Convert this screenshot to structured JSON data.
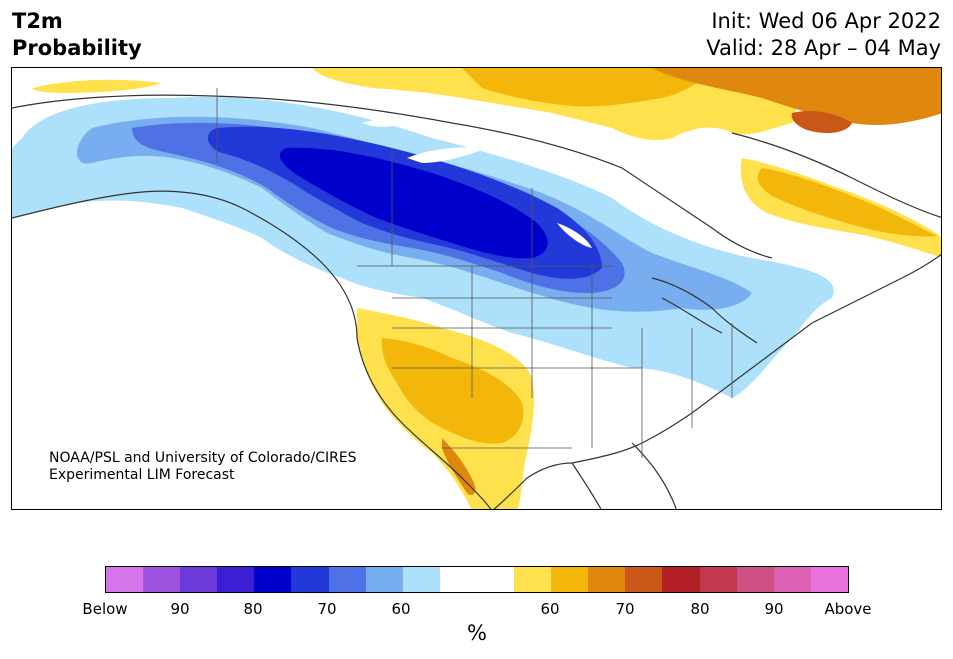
{
  "header": {
    "variable": "T2m",
    "product": "Probability",
    "init": "Init: Wed 06 Apr 2022",
    "valid": "Valid: 28 Apr – 04 May"
  },
  "credit": {
    "line1": "NOAA/PSL and University of Colorado/CIRES",
    "line2": "Experimental LIM Forecast"
  },
  "colorbar": {
    "colors": [
      "#d674ea",
      "#a052e0",
      "#6a3bd8",
      "#3c1fd4",
      "#0000cc",
      "#2238d8",
      "#4e72e6",
      "#78aef0",
      "#ade0fb",
      "#ffffff",
      "#ffffff",
      "#ffe14e",
      "#f2b70a",
      "#e0870f",
      "#c95718",
      "#b22025",
      "#c1384f",
      "#cf5083",
      "#dd62b5",
      "#e872dc"
    ],
    "ticks": [
      "Below",
      "90",
      "80",
      "70",
      "60",
      "60",
      "70",
      "80",
      "90",
      "Above"
    ],
    "unit": "%"
  },
  "map": {
    "colors": {
      "below60": "#ade0fb",
      "below70": "#78aef0",
      "below80": "#4e72e6",
      "below90": "#2238d8",
      "below_core": "#0000cc",
      "above60": "#ffe14e",
      "above70": "#f2b70a",
      "above80": "#e0870f",
      "above90": "#c95718",
      "coast": "#333333"
    }
  }
}
